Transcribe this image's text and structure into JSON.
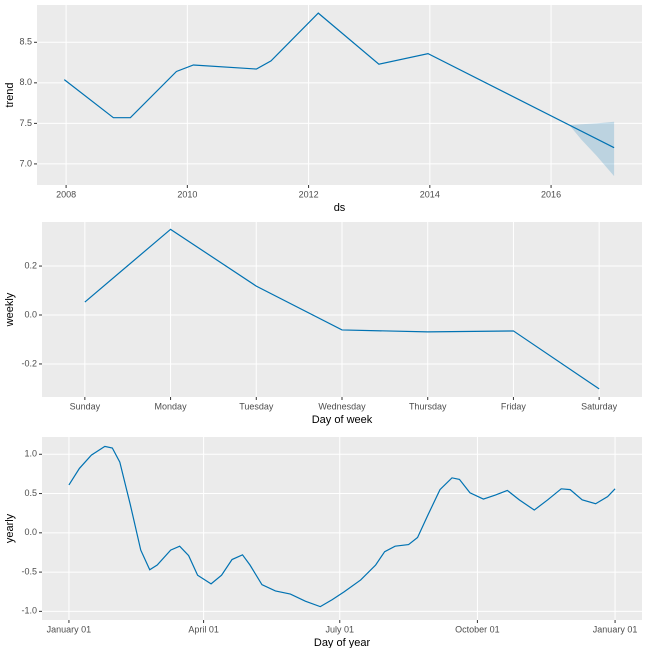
{
  "chart_data": [
    {
      "type": "line",
      "x_label": "ds",
      "y_label": "trend",
      "color": "#0072B2",
      "grid": true,
      "x": [
        2007.97,
        2008.78,
        2009.06,
        2009.82,
        2010.1,
        2011.14,
        2011.38,
        2012.16,
        2013.16,
        2013.97,
        2017.04
      ],
      "values": [
        8.04,
        7.57,
        7.57,
        8.14,
        8.22,
        8.17,
        8.27,
        8.86,
        8.23,
        8.36,
        7.2
      ],
      "band": {
        "color": "#0072B2",
        "x": [
          2016.3,
          2016.5,
          2016.75,
          2017.04
        ],
        "upper": [
          7.48,
          7.49,
          7.5,
          7.52
        ],
        "lower": [
          7.48,
          7.3,
          7.1,
          6.85
        ]
      },
      "xlim": [
        2007.52,
        2017.5
      ],
      "xticks": [
        2008,
        2010,
        2012,
        2014,
        2016
      ],
      "ylim": [
        6.74,
        8.96
      ],
      "yticks": [
        {
          "value": 7,
          "label": "7.0"
        },
        7.5,
        {
          "value": 8,
          "label": "8.0"
        },
        8.5
      ]
    },
    {
      "type": "line",
      "x_label": "Day of week",
      "y_label": "weekly",
      "color": "#0072B2",
      "grid": true,
      "categories": [
        "Sunday",
        "Monday",
        "Tuesday",
        "Wednesday",
        "Thursday",
        "Friday",
        "Saturday"
      ],
      "values": [
        0.053,
        0.35,
        0.118,
        -0.061,
        -0.069,
        -0.065,
        -0.302
      ],
      "ylim": [
        -0.335,
        0.38
      ],
      "yticks": [
        -0.2,
        {
          "value": 0,
          "label": "0.0"
        },
        0.2
      ]
    },
    {
      "type": "line",
      "x_label": "Day of year",
      "y_label": "yearly",
      "color": "#0072B2",
      "grid": true,
      "x": [
        0,
        7,
        15,
        24,
        29,
        34,
        41,
        48,
        54,
        59,
        68,
        74,
        80,
        86,
        95,
        102,
        109,
        116,
        121,
        129,
        138,
        148,
        158,
        168,
        176,
        184,
        195,
        205,
        211,
        218,
        227,
        233,
        240,
        248,
        256,
        261,
        268,
        277,
        285,
        293,
        301,
        311,
        320,
        329,
        335,
        343,
        352,
        360,
        365
      ],
      "values": [
        0.61,
        0.82,
        0.99,
        1.1,
        1.08,
        0.9,
        0.36,
        -0.22,
        -0.47,
        -0.41,
        -0.22,
        -0.17,
        -0.29,
        -0.54,
        -0.65,
        -0.54,
        -0.34,
        -0.28,
        -0.41,
        -0.66,
        -0.74,
        -0.78,
        -0.87,
        -0.94,
        -0.85,
        -0.75,
        -0.6,
        -0.41,
        -0.24,
        -0.17,
        -0.15,
        -0.06,
        0.23,
        0.55,
        0.7,
        0.68,
        0.51,
        0.43,
        0.48,
        0.54,
        0.42,
        0.29,
        0.42,
        0.56,
        0.55,
        0.42,
        0.37,
        0.46,
        0.56
      ],
      "xlim": [
        -18,
        383
      ],
      "xticks": [
        {
          "value": 0,
          "label": "January 01"
        },
        {
          "value": 90,
          "label": "April 01"
        },
        {
          "value": 181,
          "label": "July 01"
        },
        {
          "value": 273,
          "label": "October 01"
        },
        {
          "value": 365,
          "label": "January 01"
        }
      ],
      "ylim": [
        -1.11,
        1.22
      ],
      "yticks": [
        {
          "value": -1,
          "label": "-1.0"
        },
        -0.5,
        {
          "value": 0,
          "label": "0.0"
        },
        0.5,
        {
          "value": 1,
          "label": "1.0"
        }
      ]
    }
  ]
}
